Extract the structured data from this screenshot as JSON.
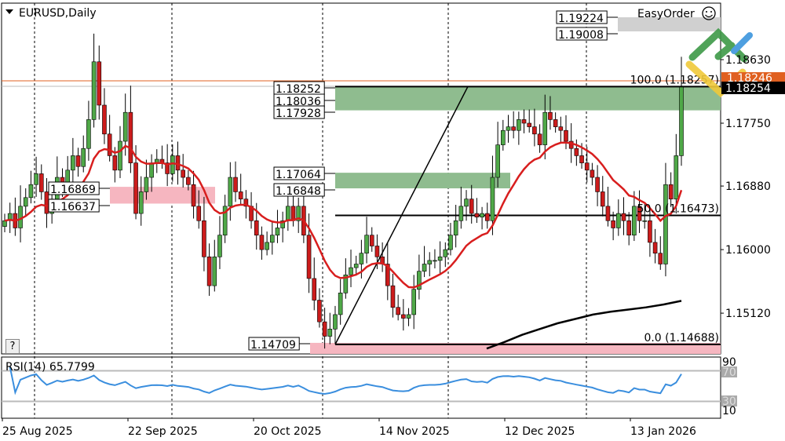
{
  "header": {
    "symbol_title": "EURUSD,Daily",
    "easyorder_label": "EasyOrder"
  },
  "help_button": "?",
  "colors": {
    "bull": "#4fa848",
    "bear": "#cc1c1c",
    "ma": "#d81e1e",
    "ma_long": "#000000",
    "rsi": "#3a8ede",
    "zone_green": "#8fbc8f",
    "zone_pink": "#f6b6c0",
    "zone_grey": "#d0d0d0",
    "bid_line": "#e06020"
  },
  "chart_data": {
    "type": "candlestick",
    "symbol": "EURUSD",
    "timeframe": "Daily",
    "ylim": [
      1.1455,
      1.194
    ],
    "price_ticks": [
      "1.18630",
      "1.17750",
      "1.16880",
      "1.16000",
      "1.15120"
    ],
    "price_tick_values": [
      1.1863,
      1.1775,
      1.1688,
      1.16,
      1.1512
    ],
    "date_ticks": [
      "25 Aug 2025",
      "22 Sep 2025",
      "20 Oct 2025",
      "14 Nov 2025",
      "12 Dec 2025",
      "13 Jan 2026"
    ],
    "current_price": "1.18254",
    "ask_price_tag": "1.18246",
    "closes": [
      1.164,
      1.165,
      1.163,
      1.166,
      1.1672,
      1.169,
      1.1705,
      1.168,
      1.165,
      1.167,
      1.17,
      1.169,
      1.171,
      1.173,
      1.1715,
      1.174,
      1.178,
      1.186,
      1.18,
      1.176,
      1.173,
      1.171,
      1.175,
      1.179,
      1.172,
      1.165,
      1.168,
      1.17,
      1.172,
      1.1725,
      1.172,
      1.1705,
      1.173,
      1.171,
      1.17,
      1.169,
      1.166,
      1.164,
      1.159,
      1.155,
      1.159,
      1.162,
      1.166,
      1.17,
      1.168,
      1.167,
      1.166,
      1.164,
      1.162,
      1.16,
      1.161,
      1.162,
      1.163,
      1.164,
      1.166,
      1.164,
      1.166,
      1.162,
      1.156,
      1.153,
      1.15,
      1.148,
      1.149,
      1.151,
      1.154,
      1.1565,
      1.1575,
      1.158,
      1.1595,
      1.162,
      1.1605,
      1.159,
      1.158,
      1.155,
      1.152,
      1.151,
      1.1505,
      1.151,
      1.1545,
      1.157,
      1.158,
      1.1585,
      1.1585,
      1.159,
      1.16,
      1.162,
      1.164,
      1.166,
      1.167,
      1.165,
      1.1645,
      1.165,
      1.164,
      1.17,
      1.1745,
      1.1765,
      1.177,
      1.1765,
      1.178,
      1.1775,
      1.177,
      1.176,
      1.1745,
      1.179,
      1.178,
      1.177,
      1.1765,
      1.175,
      1.174,
      1.173,
      1.172,
      1.171,
      1.17,
      1.168,
      1.166,
      1.164,
      1.163,
      1.165,
      1.164,
      1.162,
      1.166,
      1.164,
      1.164,
      1.161,
      1.1595,
      1.158,
      1.169,
      1.167,
      1.173,
      1.1825
    ],
    "ma_long": {
      "values": [
        1.1463,
        1.1472,
        1.1482,
        1.149,
        1.1498,
        1.1504,
        1.151,
        1.1514,
        1.1517,
        1.152,
        1.1524,
        1.1529
      ]
    },
    "levels": {
      "zone_top": {
        "labels": [
          "1.18252",
          "1.18036",
          "1.17928"
        ],
        "hi": 1.18252,
        "lo": 1.17928
      },
      "zone_mid": {
        "labels": [
          "1.17064",
          "1.16848"
        ],
        "hi": 1.17064,
        "lo": 1.16848
      },
      "zone_left": {
        "labels": [
          "1.16869",
          "1.16637"
        ],
        "hi": 1.16869,
        "lo": 1.16637
      },
      "zone_bottom": {
        "labels": [
          "1.14709"
        ],
        "hi": 1.14709,
        "lo": 1.1455
      },
      "zone_easyorder": {
        "labels": [
          "1.19224",
          "1.19008"
        ],
        "hi": 1.19224,
        "lo": 1.19008
      }
    },
    "fibonacci": [
      {
        "label": "100.0 (1.18257)",
        "price": 1.18257
      },
      {
        "label": "50.0 (1.16473)",
        "price": 1.16473
      },
      {
        "label": "0.0 (1.14688)",
        "price": 1.14688
      }
    ],
    "rsi": {
      "title": "RSI(14) 65.7799",
      "period": 14,
      "last": 65.7799,
      "levels": [
        70,
        30
      ],
      "axis_ticks": [
        "90",
        "70",
        "30",
        "10"
      ]
    }
  }
}
